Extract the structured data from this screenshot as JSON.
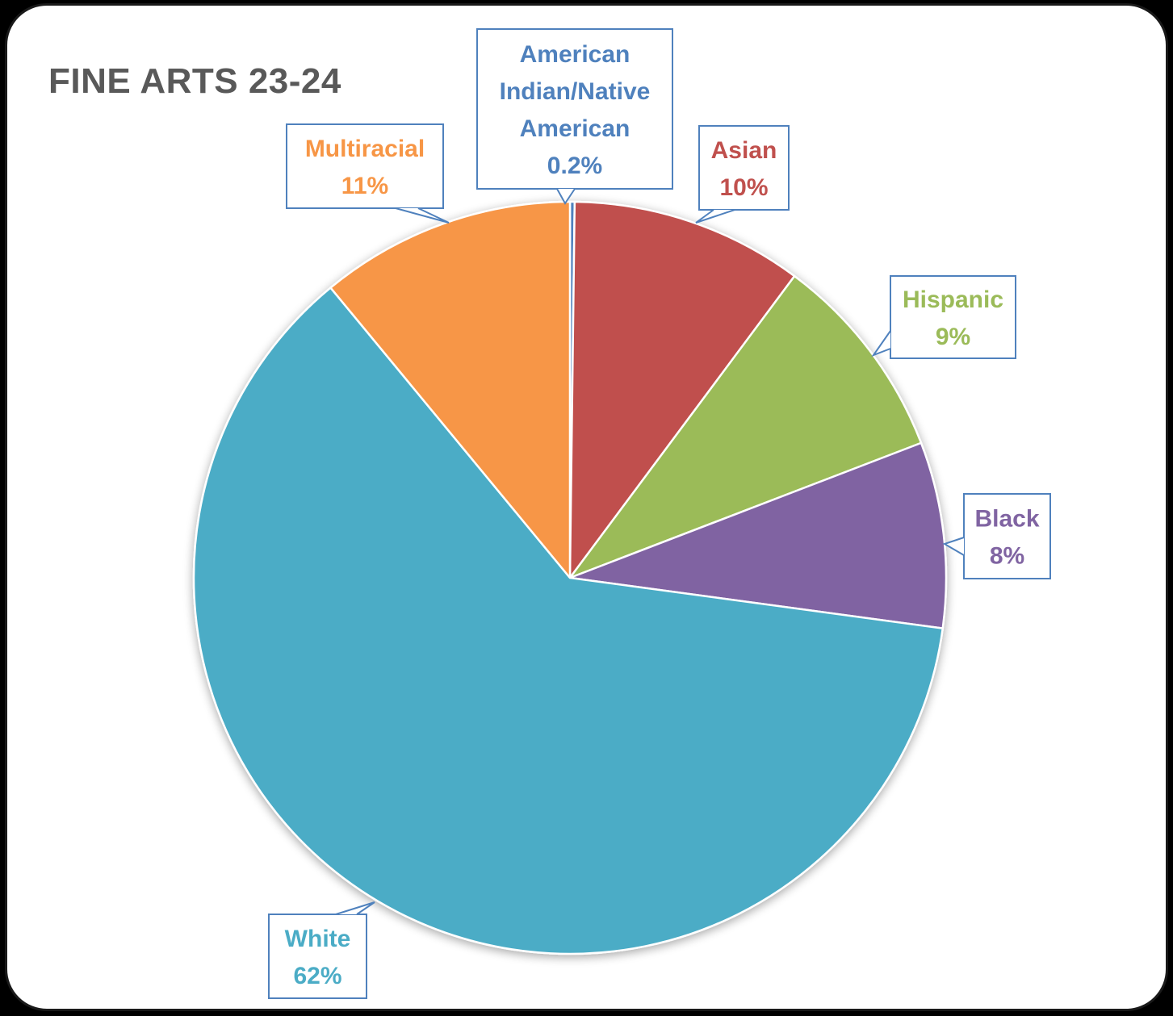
{
  "chart_data": {
    "type": "pie",
    "title": "FINE ARTS 23-24",
    "slices": [
      {
        "name": "American Indian/Native American",
        "label_lines": [
          "American",
          "Indian/Native",
          "American"
        ],
        "value": 0.2,
        "value_label": "0.2%",
        "color": "#4F81BD",
        "label_color": "#4F81BD"
      },
      {
        "name": "Asian",
        "label_lines": [
          "Asian"
        ],
        "value": 10,
        "value_label": "10%",
        "color": "#C0504D",
        "label_color": "#C0504D"
      },
      {
        "name": "Hispanic",
        "label_lines": [
          "Hispanic"
        ],
        "value": 9,
        "value_label": "9%",
        "color": "#9BBB59",
        "label_color": "#9BBB59"
      },
      {
        "name": "Black",
        "label_lines": [
          "Black"
        ],
        "value": 8,
        "value_label": "8%",
        "color": "#8064A2",
        "label_color": "#8064A2"
      },
      {
        "name": "White",
        "label_lines": [
          "White"
        ],
        "value": 62,
        "value_label": "62%",
        "color": "#4BACC6",
        "label_color": "#4BACC6"
      },
      {
        "name": "Multiracial",
        "label_lines": [
          "Multiracial"
        ],
        "value": 11,
        "value_label": "11%",
        "color": "#F79646",
        "label_color": "#F79646"
      }
    ],
    "legend": "none",
    "callout_border_color": "#4F81BD"
  }
}
